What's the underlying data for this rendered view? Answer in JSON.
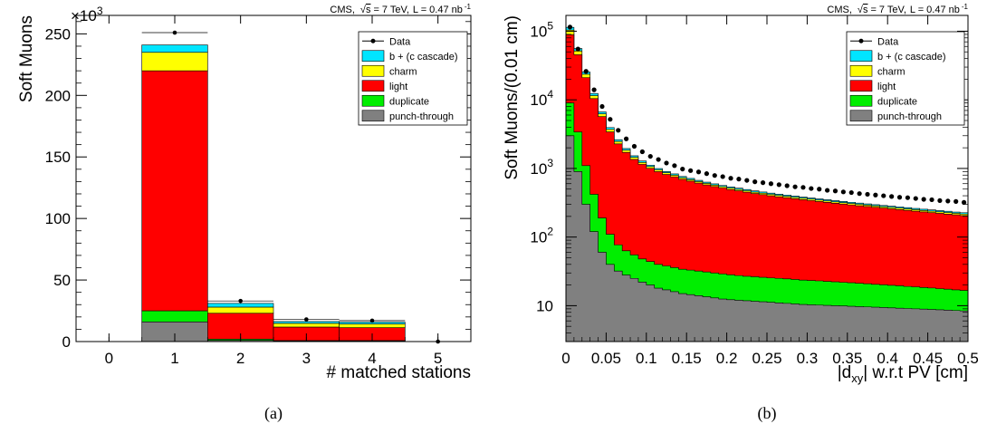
{
  "chart_data": [
    {
      "type": "bar",
      "stacked": true,
      "caption": "(a)",
      "header": {
        "experiment": "CMS,",
        "energy": "= 7 TeV,",
        "lumi": "L = 0.47 nb",
        "lumi_exp": "-1"
      },
      "ylabel": "Soft Muons",
      "yscale_exponent": "×10",
      "yscale_power": "3",
      "xlabel": "# matched stations",
      "ylim": [
        0,
        265
      ],
      "xlim": [
        -0.5,
        5.5
      ],
      "xticks": [
        "0",
        "1",
        "2",
        "3",
        "4",
        "5"
      ],
      "yticks": [
        "0",
        "50",
        "100",
        "150",
        "200",
        "250"
      ],
      "categories": [
        "0",
        "1",
        "2",
        "3",
        "4",
        "5"
      ],
      "series": [
        {
          "name": "punch-through",
          "color": "#808080",
          "values": [
            0,
            16,
            1,
            0.5,
            0.5,
            0
          ]
        },
        {
          "name": "duplicate",
          "color": "#00ee00",
          "values": [
            0,
            9,
            1,
            0.3,
            0.3,
            0
          ]
        },
        {
          "name": "light",
          "color": "#ff0000",
          "values": [
            0,
            195,
            21,
            11,
            10.5,
            0
          ]
        },
        {
          "name": "charm",
          "color": "#ffff00",
          "values": [
            0,
            15,
            5,
            3,
            3,
            0
          ]
        },
        {
          "name": "b + (c cascade)",
          "color": "#00e5ff",
          "values": [
            0,
            6,
            3,
            1.5,
            1.5,
            0
          ]
        }
      ],
      "data_points": {
        "name": "Data",
        "values": [
          null,
          251,
          33,
          18,
          17,
          0
        ]
      },
      "legend": {
        "position": "top-right",
        "entries": [
          "Data",
          "b + (c cascade)",
          "charm",
          "light",
          "duplicate",
          "punch-through"
        ]
      }
    },
    {
      "type": "bar",
      "stacked": true,
      "log_y": true,
      "caption": "(b)",
      "header": {
        "experiment": "CMS,",
        "energy": "= 7 TeV,",
        "lumi": "L = 0.47 nb",
        "lumi_exp": "-1"
      },
      "ylabel": "Soft Muons/(0.01 cm)",
      "xlabel_parts": [
        "|d",
        "xy",
        "| w.r.t PV [cm]"
      ],
      "xlim": [
        0,
        0.5
      ],
      "ylim": [
        3,
        170000
      ],
      "xticks": [
        "0",
        "0.05",
        "0.1",
        "0.15",
        "0.2",
        "0.25",
        "0.3",
        "0.35",
        "0.4",
        "0.45",
        "0.5"
      ],
      "yticks": [
        {
          "base": "10",
          "exp": ""
        },
        {
          "base": "10",
          "exp": "2"
        },
        {
          "base": "10",
          "exp": "3"
        },
        {
          "base": "10",
          "exp": "4"
        },
        {
          "base": "10",
          "exp": "5"
        }
      ],
      "bin_width": 0.01,
      "series": [
        {
          "name": "punch-through",
          "color": "#808080",
          "values": [
            3000,
            900,
            300,
            120,
            60,
            40,
            32,
            28,
            25,
            22,
            20,
            18,
            17,
            16,
            15,
            14.5,
            14,
            13.5,
            13,
            12.5,
            12.2,
            12,
            11.8,
            11.6,
            11.4,
            11.2,
            11,
            10.8,
            10.6,
            10.4,
            10.3,
            10.2,
            10.1,
            10,
            9.9,
            9.8,
            9.7,
            9.6,
            9.5,
            9.4,
            9.3,
            9.2,
            9.1,
            9,
            8.9,
            8.8,
            8.7,
            8.6,
            8.5,
            8.4
          ]
        },
        {
          "name": "duplicate",
          "color": "#00ee00",
          "values": [
            6000,
            2500,
            800,
            300,
            130,
            70,
            45,
            35,
            30,
            26,
            24,
            22,
            21,
            20,
            19,
            18.5,
            18,
            17.5,
            17,
            16.5,
            16,
            15.5,
            15,
            14.8,
            14.5,
            14.2,
            14,
            13.8,
            13.5,
            13.2,
            13,
            12.8,
            12.5,
            12.3,
            12,
            11.8,
            11.5,
            11.3,
            11,
            10.8,
            10.5,
            10.3,
            10,
            9.8,
            9.5,
            9.3,
            9,
            8.8,
            8.5,
            8.3
          ]
        },
        {
          "name": "light",
          "color": "#ff0000",
          "values": [
            80000,
            42000,
            20000,
            10000,
            5500,
            3300,
            2200,
            1650,
            1300,
            1100,
            960,
            860,
            780,
            720,
            660,
            620,
            580,
            545,
            515,
            490,
            465,
            445,
            425,
            405,
            390,
            375,
            362,
            350,
            338,
            327,
            317,
            307,
            298,
            289,
            281,
            273,
            265,
            258,
            251,
            244,
            238,
            232,
            226,
            220,
            214,
            209,
            204,
            199,
            194,
            189
          ]
        },
        {
          "name": "charm",
          "color": "#ffff00",
          "values": [
            15000,
            6000,
            2500,
            1100,
            550,
            300,
            190,
            130,
            95,
            75,
            62,
            53,
            46,
            41,
            37,
            34,
            31,
            29,
            27,
            25,
            24,
            23,
            22,
            21,
            20,
            19,
            18.5,
            18,
            17.5,
            17,
            16.5,
            16,
            15.5,
            15,
            14.7,
            14.4,
            14.1,
            13.8,
            13.5,
            13.2,
            12.9,
            12.6,
            12.3,
            12,
            11.8,
            11.6,
            11.4,
            11.2,
            11,
            10.8
          ]
        },
        {
          "name": "b + (c cascade)",
          "color": "#00e5ff",
          "values": [
            10000,
            4500,
            1900,
            850,
            420,
            240,
            155,
            108,
            80,
            63,
            52,
            44,
            39,
            35,
            32,
            29.5,
            27.5,
            25.5,
            24,
            22.5,
            21.5,
            20.5,
            19.5,
            18.5,
            17.8,
            17.1,
            16.5,
            15.9,
            15.4,
            14.9,
            14.4,
            14,
            13.6,
            13.2,
            12.9,
            12.6,
            12.3,
            12,
            11.7,
            11.4,
            11.2,
            11,
            10.8,
            10.6,
            10.4,
            10.2,
            10,
            9.8,
            9.6,
            9.4
          ]
        }
      ],
      "data_points": {
        "name": "Data",
        "values": [
          115000,
          55000,
          26000,
          14000,
          8000,
          5200,
          3600,
          2700,
          2100,
          1750,
          1500,
          1350,
          1200,
          1100,
          980,
          930,
          890,
          840,
          790,
          760,
          720,
          700,
          670,
          640,
          620,
          600,
          580,
          560,
          540,
          530,
          510,
          500,
          480,
          470,
          455,
          445,
          430,
          420,
          410,
          400,
          390,
          380,
          375,
          365,
          355,
          350,
          340,
          335,
          330,
          320
        ]
      },
      "legend": {
        "position": "top-right",
        "entries": [
          "Data",
          "b + (c cascade)",
          "charm",
          "light",
          "duplicate",
          "punch-through"
        ]
      }
    }
  ]
}
